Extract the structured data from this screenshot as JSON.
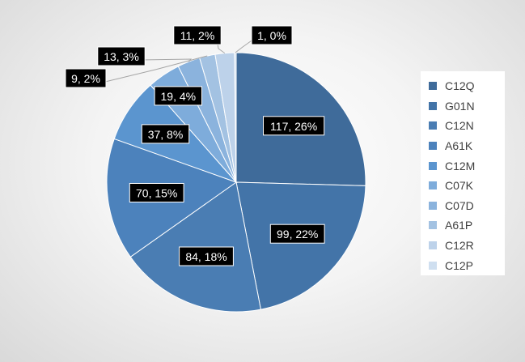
{
  "chart_data": {
    "type": "pie",
    "categories": [
      "C12Q",
      "G01N",
      "C12N",
      "A61K",
      "C12M",
      "C07K",
      "C07D",
      "A61P",
      "C12R",
      "C12P"
    ],
    "values": [
      117,
      99,
      84,
      70,
      37,
      19,
      13,
      9,
      11,
      1
    ],
    "data_labels": [
      "117, 26%",
      "99, 22%",
      "84, 18%",
      "70, 15%",
      "37, 8%",
      "19, 4%",
      "13, 3%",
      "9, 2%",
      "11, 2%",
      "1, 0%"
    ],
    "colors": [
      "#3F6B9A",
      "#4374A8",
      "#4A7DB3",
      "#4C82BC",
      "#5B95CF",
      "#7EACDB",
      "#8BB3DD",
      "#A3C2E2",
      "#BDD2EA",
      "#CFDFF0"
    ],
    "legend_position": "right",
    "title": ""
  }
}
